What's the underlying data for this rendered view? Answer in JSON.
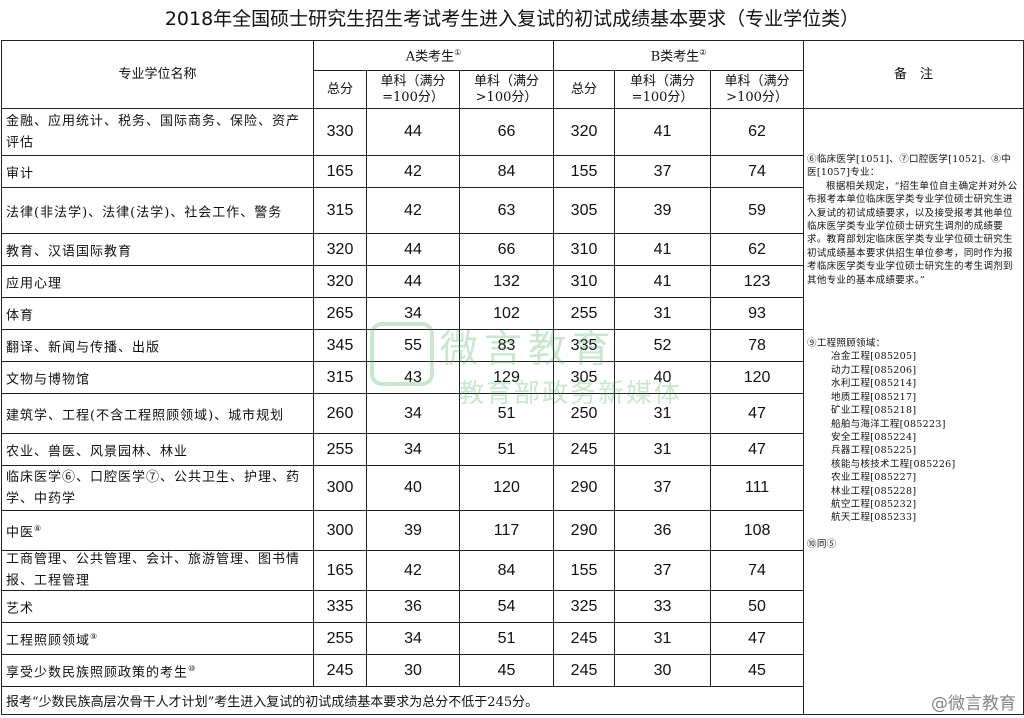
{
  "title": "2018年全国硕士研究生招生考试考生进入复试的初试成绩基本要求（专业学位类）",
  "header": {
    "name": "专业学位名称",
    "a": "A类考生",
    "a_mark": "①",
    "b": "B类考生",
    "b_mark": "②",
    "total": "总分",
    "single100": "单科（满分=100分）",
    "single_over100": "单科（满分>100分）",
    "remarks": "备　注"
  },
  "rows": [
    {
      "name": "金融、应用统计、税务、国际商务、保险、资产评估",
      "mark": "",
      "a": [
        "330",
        "44",
        "66"
      ],
      "b": [
        "320",
        "41",
        "62"
      ]
    },
    {
      "name": "审计",
      "mark": "",
      "a": [
        "165",
        "42",
        "84"
      ],
      "b": [
        "155",
        "37",
        "74"
      ]
    },
    {
      "name": "法律(非法学)、法律(法学)、社会工作、警务",
      "mark": "",
      "a": [
        "315",
        "42",
        "63"
      ],
      "b": [
        "305",
        "39",
        "59"
      ]
    },
    {
      "name": "教育、汉语国际教育",
      "mark": "",
      "a": [
        "320",
        "44",
        "66"
      ],
      "b": [
        "310",
        "41",
        "62"
      ]
    },
    {
      "name": "应用心理",
      "mark": "",
      "a": [
        "320",
        "44",
        "132"
      ],
      "b": [
        "310",
        "41",
        "123"
      ]
    },
    {
      "name": "体育",
      "mark": "",
      "a": [
        "265",
        "34",
        "102"
      ],
      "b": [
        "255",
        "31",
        "93"
      ]
    },
    {
      "name": "翻译、新闻与传播、出版",
      "mark": "",
      "a": [
        "345",
        "55",
        "83"
      ],
      "b": [
        "335",
        "52",
        "78"
      ]
    },
    {
      "name": "文物与博物馆",
      "mark": "",
      "a": [
        "315",
        "43",
        "129"
      ],
      "b": [
        "305",
        "40",
        "120"
      ]
    },
    {
      "name": "建筑学、工程(不含工程照顾领域)、城市规划",
      "mark": "",
      "a": [
        "260",
        "34",
        "51"
      ],
      "b": [
        "250",
        "31",
        "47"
      ]
    },
    {
      "name": "农业、兽医、风景园林、林业",
      "mark": "",
      "a": [
        "255",
        "34",
        "51"
      ],
      "b": [
        "245",
        "31",
        "47"
      ]
    },
    {
      "name": "临床医学⑥、口腔医学⑦、公共卫生、护理、药学、中药学",
      "mark": "",
      "a": [
        "300",
        "40",
        "120"
      ],
      "b": [
        "290",
        "37",
        "111"
      ]
    },
    {
      "name": "中医",
      "mark": "⑧",
      "a": [
        "300",
        "39",
        "117"
      ],
      "b": [
        "290",
        "36",
        "108"
      ]
    },
    {
      "name": "工商管理、公共管理、会计、旅游管理、图书情报、工程管理",
      "mark": "",
      "a": [
        "165",
        "42",
        "84"
      ],
      "b": [
        "155",
        "37",
        "74"
      ]
    },
    {
      "name": "艺术",
      "mark": "",
      "a": [
        "335",
        "36",
        "54"
      ],
      "b": [
        "325",
        "33",
        "50"
      ]
    },
    {
      "name": "工程照顾领域",
      "mark": "⑨",
      "a": [
        "255",
        "34",
        "51"
      ],
      "b": [
        "245",
        "31",
        "47"
      ]
    },
    {
      "name": "享受少数民族照顾政策的考生",
      "mark": "⑩",
      "a": [
        "245",
        "30",
        "45"
      ],
      "b": [
        "245",
        "30",
        "45"
      ]
    }
  ],
  "footer": "报考“少数民族高层次骨干人才计划”考生进入复试的初试成绩基本要求为总分不低于245分。",
  "remarks": {
    "note1_head": "⑥临床医学[1051]、⑦口腔医学[1052]、⑧中医[1057]专业：",
    "note1_body": "根据相关规定，“招生单位自主确定并对外公布报考本单位临床医学类专业学位硕士研究生进入复试的初试成绩要求，以及接受报考其他单位临床医学类专业学位硕士研究生调剂的成绩要求。教育部划定临床医学类专业学位硕士研究生初试成绩基本要求供招生单位参考，同时作为报考临床医学类专业学位硕士研究生的考生调剂到其他专业的基本成绩要求。”",
    "note2_head": "⑨工程照顾领域：",
    "note2_items": [
      "冶金工程[085205]",
      "动力工程[085206]",
      "水利工程[085214]",
      "地质工程[085217]",
      "矿业工程[085218]",
      "船舶与海洋工程[085223]",
      "安全工程[085224]",
      "兵器工程[085225]",
      "核能与核技术工程[085226]",
      "农业工程[085227]",
      "林业工程[085228]",
      "航空工程[085232]",
      "航天工程[085233]"
    ],
    "note3": "⑩同⑤"
  },
  "watermark": {
    "line1": "微言教育",
    "line2": "教育部政务新媒体",
    "color": "#3caa50"
  },
  "corner_mark": "@微言教育"
}
